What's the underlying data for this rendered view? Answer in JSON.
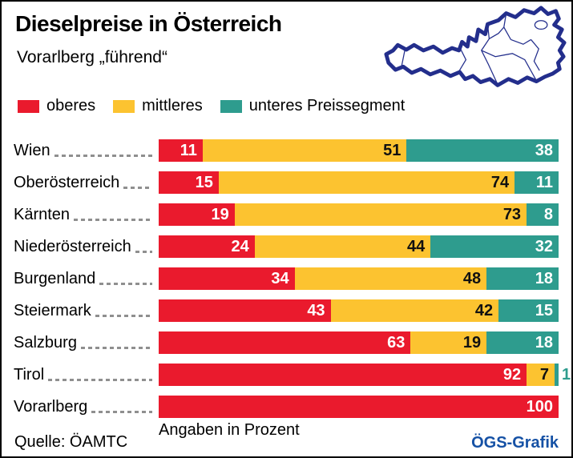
{
  "title": "Dieselpreise in Österreich",
  "subtitle": "Vorarlberg „führend“",
  "legend": [
    {
      "label": "oberes",
      "color": "#ea1a2d"
    },
    {
      "label": "mittleres",
      "color": "#fcc330"
    },
    {
      "label": "unteres Preissegment",
      "color": "#2e9c8e"
    }
  ],
  "chart_data": {
    "type": "bar",
    "orientation": "horizontal",
    "stacked": true,
    "unit": "percent",
    "xlim": [
      0,
      100
    ],
    "categories": [
      "Wien",
      "Oberösterreich",
      "Kärnten",
      "Niederösterreich",
      "Burgenland",
      "Steiermark",
      "Salzburg",
      "Tirol",
      "Vorarlberg"
    ],
    "series": [
      {
        "name": "oberes Preissegment",
        "color": "#ea1a2d",
        "label_color": "#ffffff",
        "values": [
          11,
          15,
          19,
          24,
          34,
          43,
          63,
          92,
          100
        ]
      },
      {
        "name": "mittleres Preissegment",
        "color": "#fcc330",
        "label_color": "#111111",
        "values": [
          51,
          74,
          73,
          44,
          48,
          42,
          19,
          7,
          0
        ]
      },
      {
        "name": "unteres Preissegment",
        "color": "#2e9c8e",
        "label_color": "#ffffff",
        "values": [
          38,
          11,
          8,
          32,
          18,
          15,
          18,
          1,
          0
        ]
      }
    ],
    "note": "Angaben in Prozent"
  },
  "footer": {
    "note": "Angaben in Prozent",
    "source": "Quelle: ÖAMTC",
    "credit": "ÖGS-Grafik",
    "credit_color": "#1551a5"
  },
  "map": {
    "name": "Österreich Umriss",
    "outline_color": "#232e8c"
  }
}
